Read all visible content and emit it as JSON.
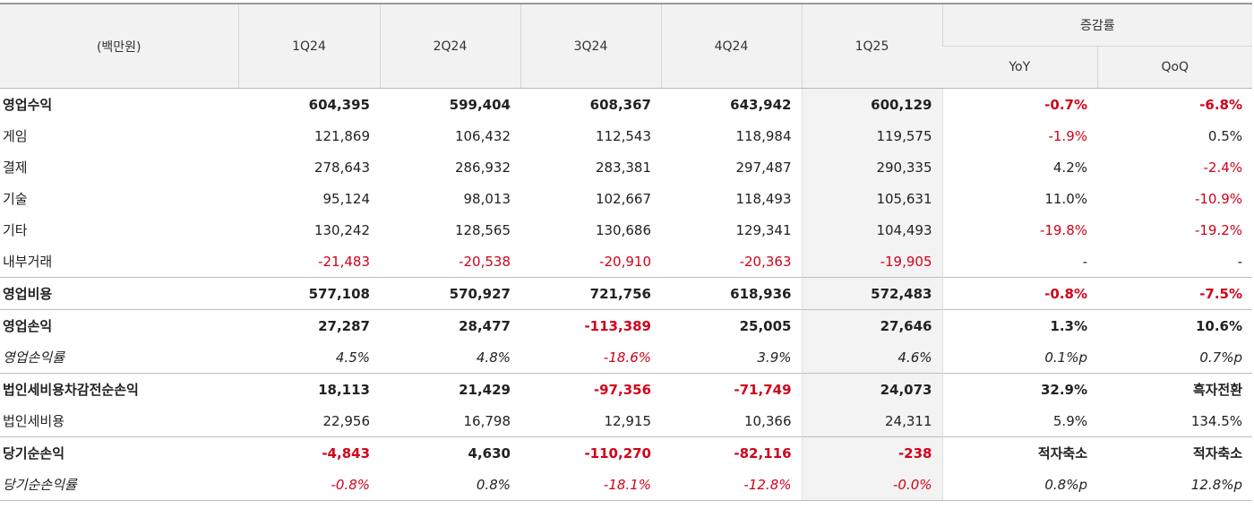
{
  "header": {
    "unit": "(백만원)",
    "periods": [
      "1Q24",
      "2Q24",
      "3Q24",
      "4Q24",
      "1Q25"
    ],
    "change_group": "증감률",
    "change_cols": [
      "YoY",
      "QoQ"
    ]
  },
  "rows": [
    {
      "label": "영업수익",
      "bold": true,
      "italic": false,
      "sep": false,
      "values": [
        "604,395",
        "599,404",
        "608,367",
        "643,942",
        "600,129",
        "-0.7%",
        "-6.8%"
      ],
      "neg": [
        false,
        false,
        false,
        false,
        false,
        true,
        true
      ]
    },
    {
      "label": "게임",
      "bold": false,
      "italic": false,
      "sep": false,
      "values": [
        "121,869",
        "106,432",
        "112,543",
        "118,984",
        "119,575",
        "-1.9%",
        "0.5%"
      ],
      "neg": [
        false,
        false,
        false,
        false,
        false,
        true,
        false
      ]
    },
    {
      "label": "결제",
      "bold": false,
      "italic": false,
      "sep": false,
      "values": [
        "278,643",
        "286,932",
        "283,381",
        "297,487",
        "290,335",
        "4.2%",
        "-2.4%"
      ],
      "neg": [
        false,
        false,
        false,
        false,
        false,
        false,
        true
      ]
    },
    {
      "label": "기술",
      "bold": false,
      "italic": false,
      "sep": false,
      "values": [
        "95,124",
        "98,013",
        "102,667",
        "118,493",
        "105,631",
        "11.0%",
        "-10.9%"
      ],
      "neg": [
        false,
        false,
        false,
        false,
        false,
        false,
        true
      ]
    },
    {
      "label": "기타",
      "bold": false,
      "italic": false,
      "sep": false,
      "values": [
        "130,242",
        "128,565",
        "130,686",
        "129,341",
        "104,493",
        "-19.8%",
        "-19.2%"
      ],
      "neg": [
        false,
        false,
        false,
        false,
        false,
        true,
        true
      ]
    },
    {
      "label": "내부거래",
      "bold": false,
      "italic": false,
      "sep": false,
      "values": [
        "-21,483",
        "-20,538",
        "-20,910",
        "-20,363",
        "-19,905",
        "-",
        "-"
      ],
      "neg": [
        true,
        true,
        true,
        true,
        true,
        false,
        false
      ]
    },
    {
      "label": "영업비용",
      "bold": true,
      "italic": false,
      "sep": true,
      "values": [
        "577,108",
        "570,927",
        "721,756",
        "618,936",
        "572,483",
        "-0.8%",
        "-7.5%"
      ],
      "neg": [
        false,
        false,
        false,
        false,
        false,
        true,
        true
      ]
    },
    {
      "label": "영업손익",
      "bold": true,
      "italic": false,
      "sep": true,
      "values": [
        "27,287",
        "28,477",
        "-113,389",
        "25,005",
        "27,646",
        "1.3%",
        "10.6%"
      ],
      "neg": [
        false,
        false,
        true,
        false,
        false,
        false,
        false
      ]
    },
    {
      "label": "영업손익률",
      "bold": false,
      "italic": true,
      "sep": false,
      "values": [
        "4.5%",
        "4.8%",
        "-18.6%",
        "3.9%",
        "4.6%",
        "0.1%p",
        "0.7%p"
      ],
      "neg": [
        false,
        false,
        true,
        false,
        false,
        false,
        false
      ]
    },
    {
      "label": "법인세비용차감전순손익",
      "bold": true,
      "italic": false,
      "sep": true,
      "values": [
        "18,113",
        "21,429",
        "-97,356",
        "-71,749",
        "24,073",
        "32.9%",
        "흑자전환"
      ],
      "neg": [
        false,
        false,
        true,
        true,
        false,
        false,
        false
      ]
    },
    {
      "label": "법인세비용",
      "bold": false,
      "italic": false,
      "sep": false,
      "values": [
        "22,956",
        "16,798",
        "12,915",
        "10,366",
        "24,311",
        "5.9%",
        "134.5%"
      ],
      "neg": [
        false,
        false,
        false,
        false,
        false,
        false,
        false
      ]
    },
    {
      "label": "당기순손익",
      "bold": true,
      "italic": false,
      "sep": true,
      "values": [
        "-4,843",
        "4,630",
        "-110,270",
        "-82,116",
        "-238",
        "적자축소",
        "적자축소"
      ],
      "neg": [
        true,
        false,
        true,
        true,
        true,
        false,
        false
      ]
    },
    {
      "label": "당기순손익률",
      "bold": false,
      "italic": true,
      "sep": false,
      "values": [
        "-0.8%",
        "0.8%",
        "-18.1%",
        "-12.8%",
        "-0.0%",
        "0.8%p",
        "12.8%p"
      ],
      "neg": [
        true,
        false,
        true,
        true,
        true,
        false,
        false
      ]
    }
  ]
}
